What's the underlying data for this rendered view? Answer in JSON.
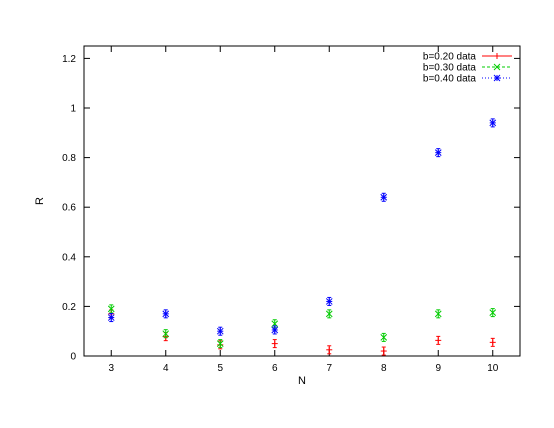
{
  "chart_data": {
    "type": "scatter",
    "xlabel": "N",
    "ylabel": "R",
    "xlim": [
      2.5,
      10.5
    ],
    "ylim": [
      0,
      1.25
    ],
    "x_ticks": [
      "3",
      "4",
      "5",
      "6",
      "7",
      "8",
      "9",
      "10"
    ],
    "y_ticks": [
      "0",
      "0.2",
      "0.4",
      "0.6",
      "0.8",
      "1",
      "1.2"
    ],
    "grid": false,
    "legend_position": "top-right",
    "series": [
      {
        "name": "b=0.20 data",
        "color": "#ff0000",
        "marker": "plus",
        "points": [
          {
            "x": 3,
            "y": 0.17
          },
          {
            "x": 4,
            "y": 0.078
          },
          {
            "x": 5,
            "y": 0.045
          },
          {
            "x": 6,
            "y": 0.05
          },
          {
            "x": 7,
            "y": 0.025
          },
          {
            "x": 8,
            "y": 0.02
          },
          {
            "x": 9,
            "y": 0.063
          },
          {
            "x": 10,
            "y": 0.055
          }
        ]
      },
      {
        "name": "b=0.30 data",
        "color": "#00cc00",
        "marker": "cross",
        "points": [
          {
            "x": 3,
            "y": 0.19
          },
          {
            "x": 4,
            "y": 0.09
          },
          {
            "x": 5,
            "y": 0.05
          },
          {
            "x": 6,
            "y": 0.13
          },
          {
            "x": 7,
            "y": 0.17
          },
          {
            "x": 8,
            "y": 0.075
          },
          {
            "x": 9,
            "y": 0.17
          },
          {
            "x": 10,
            "y": 0.175
          }
        ]
      },
      {
        "name": "b=0.40 data",
        "color": "#0000ff",
        "marker": "star",
        "points": [
          {
            "x": 3,
            "y": 0.155
          },
          {
            "x": 4,
            "y": 0.17
          },
          {
            "x": 5,
            "y": 0.1
          },
          {
            "x": 6,
            "y": 0.105
          },
          {
            "x": 7,
            "y": 0.22
          },
          {
            "x": 8,
            "y": 0.64
          },
          {
            "x": 9,
            "y": 0.82
          },
          {
            "x": 10,
            "y": 0.94
          }
        ]
      }
    ]
  }
}
